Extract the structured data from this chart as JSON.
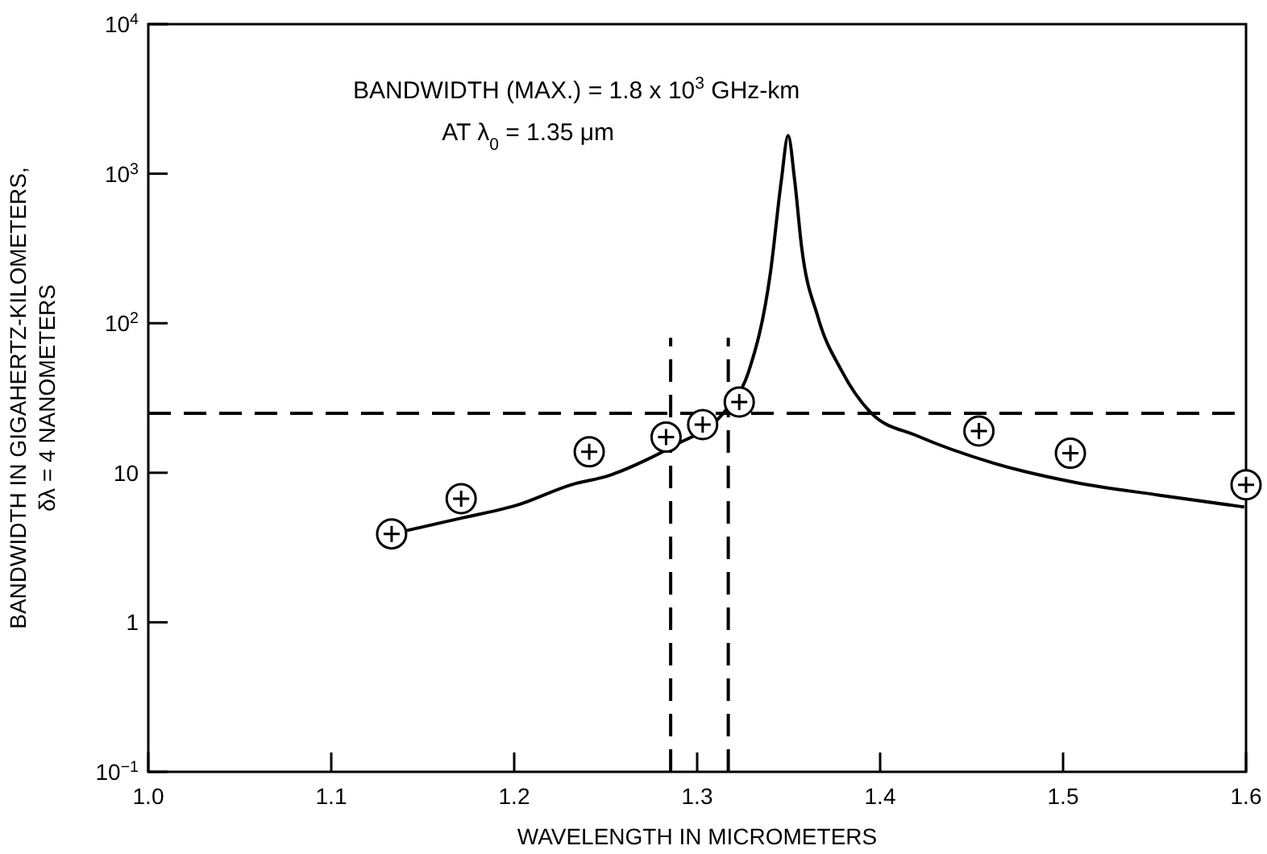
{
  "chart_data": {
    "type": "line",
    "xlabel": "WAVELENGTH IN MICROMETERS",
    "ylabel": "BANDWIDTH IN GIGAHERTZ-KILOMETERS,\nδλ = 4 NANOMETERS",
    "annotations": [
      "BANDWIDTH (MAX.) = 1.8 x 10$^{3}$ GHz-km",
      "AT λ$_{0}$ = 1.35 μm"
    ],
    "log": "y",
    "grid": false,
    "xlim": [
      1.0,
      1.6
    ],
    "xticks": [
      {
        "value": 1.0,
        "label": "1.0"
      },
      1.1,
      1.2,
      1.3,
      1.4,
      1.5,
      1.6
    ],
    "ylim": [
      0.1,
      10000
    ],
    "yticks": [
      {
        "value": 0.1,
        "label": "10$^{−1}$"
      },
      1,
      10,
      {
        "value": 100,
        "label": "10$^{2}$"
      },
      {
        "value": 1000,
        "label": "10$^{3}$"
      },
      {
        "value": 10000,
        "label": "10$^{4}$"
      }
    ],
    "ref_lines": [
      {
        "axis": "y",
        "value": 25,
        "line_style": "dashed",
        "color": "#000000"
      }
    ],
    "series": [
      {
        "color": "#000000",
        "line_style": "solid",
        "marker": "none",
        "x": [
          1.141,
          1.172,
          1.202,
          1.231,
          1.252,
          1.271,
          1.2855,
          1.317,
          1.328,
          1.34,
          1.346,
          1.3497,
          1.3533,
          1.357,
          1.366,
          1.379,
          1.396,
          1.42,
          1.462,
          1.507,
          1.552,
          1.599
        ],
        "values": [
          4.1,
          5.0,
          6.1,
          8.3,
          9.6,
          12,
          14.8,
          27.6,
          47,
          216,
          900,
          1800,
          900,
          330,
          110,
          48,
          24.5,
          17.7,
          11.6,
          8.6,
          7.1,
          5.9
        ]
      },
      {
        "type": "scatter",
        "color": "#000000",
        "marker": "circle",
        "x": [
          1.133,
          1.171,
          1.241,
          1.283,
          1.303,
          1.323,
          1.454,
          1.504,
          1.6
        ],
        "values": [
          3.9,
          6.7,
          13.8,
          17.3,
          21,
          29.7,
          19,
          13.5,
          8.3
        ]
      },
      {
        "color": "#000000",
        "line_style": "dashed",
        "marker": "none",
        "x": [
          1.2855,
          1.2855
        ],
        "values": [
          0.1,
          80
        ]
      },
      {
        "color": "#000000",
        "line_style": "dashed",
        "marker": "none",
        "x": [
          1.317,
          1.317
        ],
        "values": [
          0.1,
          80
        ]
      }
    ]
  }
}
